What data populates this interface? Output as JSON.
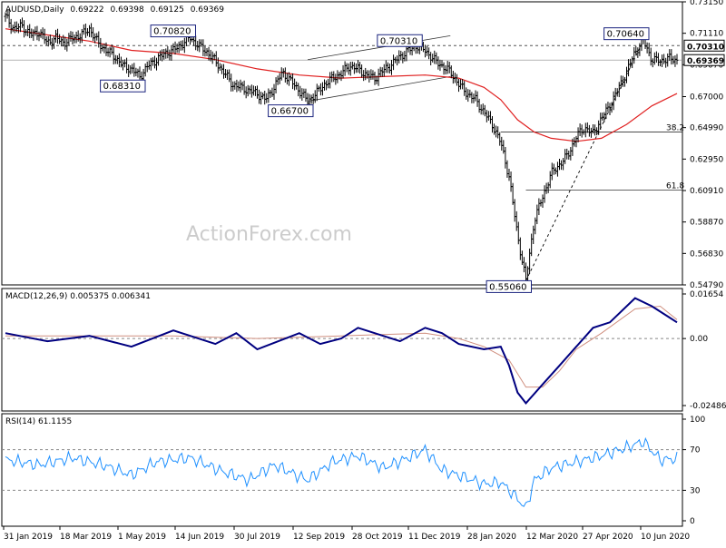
{
  "chart_data": [
    {
      "type": "candlestick",
      "title": "AUDUSD,Daily",
      "ohlc": {
        "open": "0.69222",
        "high": "0.69398",
        "low": "0.69125",
        "close": "0.69369"
      },
      "ylim": [
        0.5479,
        0.7315
      ],
      "y_ticks": [
        "0.73150",
        "0.71110",
        "0.69070",
        "0.67000",
        "0.64990",
        "0.62950",
        "0.60910",
        "0.58870",
        "0.56830",
        "0.54790"
      ],
      "x_ticks": [
        "31 Jan 2019",
        "18 Mar 2019",
        "1 May 2019",
        "14 Jun 2019",
        "30 Jul 2019",
        "12 Sep 2019",
        "28 Oct 2019",
        "11 Dec 2019",
        "28 Jan 2020",
        "12 Mar 2020",
        "27 Apr 2020",
        "10 Jun 2020"
      ],
      "price_path": [
        [
          0,
          0.722
        ],
        [
          2,
          0.714
        ],
        [
          4,
          0.716
        ],
        [
          6,
          0.71
        ],
        [
          8,
          0.712
        ],
        [
          10,
          0.705
        ],
        [
          12,
          0.708
        ],
        [
          14,
          0.705
        ],
        [
          16,
          0.708
        ],
        [
          18,
          0.71
        ],
        [
          20,
          0.714
        ],
        [
          22,
          0.705
        ],
        [
          24,
          0.7
        ],
        [
          26,
          0.696
        ],
        [
          28,
          0.69
        ],
        [
          30,
          0.688
        ],
        [
          32,
          0.6831
        ],
        [
          34,
          0.69
        ],
        [
          36,
          0.694
        ],
        [
          38,
          0.698
        ],
        [
          40,
          0.7
        ],
        [
          42,
          0.704
        ],
        [
          44,
          0.7082
        ],
        [
          46,
          0.703
        ],
        [
          48,
          0.699
        ],
        [
          50,
          0.693
        ],
        [
          52,
          0.686
        ],
        [
          54,
          0.678
        ],
        [
          56,
          0.676
        ],
        [
          58,
          0.674
        ],
        [
          60,
          0.672
        ],
        [
          62,
          0.668
        ],
        [
          64,
          0.676
        ],
        [
          66,
          0.686
        ],
        [
          68,
          0.68
        ],
        [
          70,
          0.674
        ],
        [
          72,
          0.667
        ],
        [
          74,
          0.672
        ],
        [
          76,
          0.678
        ],
        [
          78,
          0.682
        ],
        [
          80,
          0.685
        ],
        [
          82,
          0.69
        ],
        [
          84,
          0.688
        ],
        [
          86,
          0.684
        ],
        [
          88,
          0.682
        ],
        [
          90,
          0.687
        ],
        [
          92,
          0.691
        ],
        [
          94,
          0.696
        ],
        [
          96,
          0.7
        ],
        [
          98,
          0.7031
        ],
        [
          100,
          0.7
        ],
        [
          102,
          0.694
        ],
        [
          104,
          0.69
        ],
        [
          106,
          0.686
        ],
        [
          108,
          0.678
        ],
        [
          110,
          0.672
        ],
        [
          112,
          0.668
        ],
        [
          114,
          0.66
        ],
        [
          116,
          0.652
        ],
        [
          118,
          0.6402
        ],
        [
          120,
          0.618
        ],
        [
          122,
          0.58
        ],
        [
          124,
          0.5506
        ],
        [
          126,
          0.59
        ],
        [
          128,
          0.605
        ],
        [
          130,
          0.62
        ],
        [
          132,
          0.626
        ],
        [
          134,
          0.632
        ],
        [
          136,
          0.644
        ],
        [
          138,
          0.65
        ],
        [
          140,
          0.646
        ],
        [
          142,
          0.656
        ],
        [
          144,
          0.664
        ],
        [
          146,
          0.675
        ],
        [
          148,
          0.686
        ],
        [
          150,
          0.699
        ],
        [
          152,
          0.7064
        ],
        [
          154,
          0.694
        ],
        [
          156,
          0.6931
        ],
        [
          158,
          0.6948
        ],
        [
          160,
          0.6937
        ]
      ],
      "moving_average": [
        [
          0,
          0.714
        ],
        [
          10,
          0.71
        ],
        [
          20,
          0.706
        ],
        [
          30,
          0.7
        ],
        [
          40,
          0.698
        ],
        [
          50,
          0.694
        ],
        [
          60,
          0.688
        ],
        [
          70,
          0.684
        ],
        [
          80,
          0.682
        ],
        [
          90,
          0.683
        ],
        [
          100,
          0.684
        ],
        [
          108,
          0.682
        ],
        [
          114,
          0.676
        ],
        [
          118,
          0.668
        ],
        [
          122,
          0.655
        ],
        [
          126,
          0.647
        ],
        [
          130,
          0.643
        ],
        [
          136,
          0.641
        ],
        [
          142,
          0.643
        ],
        [
          148,
          0.652
        ],
        [
          154,
          0.664
        ],
        [
          160,
          0.672
        ]
      ],
      "level_labels": [
        "0.70820",
        "0.68310",
        "0.66700",
        "0.70310",
        "0.70640",
        "0.55060"
      ],
      "fib_labels": [
        "38.2",
        "61.8"
      ],
      "dashed_level": 0.7031,
      "fib_38_2": 0.6471,
      "fib_61_8": 0.6094,
      "right_labels": [
        "0.70310",
        "0.69369"
      ]
    },
    {
      "type": "line",
      "title": "MACD(12,26,9) 0.005375 0.006341",
      "ylim": [
        -0.02486,
        0.01654
      ],
      "y_ticks": [
        "0.01654",
        "0.00",
        "-0.02486"
      ],
      "series": [
        {
          "values": [
            [
              0,
              0.002
            ],
            [
              10,
              -0.001
            ],
            [
              20,
              0.001
            ],
            [
              30,
              -0.003
            ],
            [
              40,
              0.003
            ],
            [
              50,
              -0.002
            ],
            [
              55,
              0.002
            ],
            [
              60,
              -0.004
            ],
            [
              70,
              0.002
            ],
            [
              75,
              -0.002
            ],
            [
              80,
              0.0
            ],
            [
              84,
              0.004
            ],
            [
              90,
              0.001
            ],
            [
              94,
              -0.001
            ],
            [
              100,
              0.004
            ],
            [
              104,
              0.002
            ],
            [
              108,
              -0.002
            ],
            [
              114,
              -0.004
            ],
            [
              118,
              -0.003
            ],
            [
              120,
              -0.01
            ],
            [
              122,
              -0.02
            ],
            [
              124,
              -0.024
            ],
            [
              128,
              -0.017
            ],
            [
              132,
              -0.01
            ],
            [
              136,
              -0.003
            ],
            [
              140,
              0.004
            ],
            [
              144,
              0.006
            ],
            [
              150,
              0.015
            ],
            [
              154,
              0.012
            ],
            [
              158,
              0.008
            ],
            [
              160,
              0.006
            ]
          ]
        },
        {
          "values": [
            [
              0,
              0.001
            ],
            [
              20,
              0.001
            ],
            [
              40,
              0.001
            ],
            [
              60,
              0.0
            ],
            [
              80,
              0.001
            ],
            [
              100,
              0.002
            ],
            [
              108,
              0.0
            ],
            [
              114,
              -0.003
            ],
            [
              120,
              -0.008
            ],
            [
              124,
              -0.018
            ],
            [
              128,
              -0.018
            ],
            [
              132,
              -0.012
            ],
            [
              136,
              -0.004
            ],
            [
              142,
              0.002
            ],
            [
              150,
              0.011
            ],
            [
              156,
              0.012
            ],
            [
              160,
              0.007
            ]
          ]
        }
      ]
    },
    {
      "type": "line",
      "title": "RSI(14) 61.1155",
      "ylim": [
        0,
        100
      ],
      "y_ticks": [
        "100",
        "70",
        "30",
        "0"
      ],
      "series": [
        {
          "values": [
            [
              0,
              60
            ],
            [
              8,
              55
            ],
            [
              16,
              62
            ],
            [
              24,
              54
            ],
            [
              30,
              45
            ],
            [
              36,
              58
            ],
            [
              44,
              62
            ],
            [
              52,
              48
            ],
            [
              58,
              40
            ],
            [
              64,
              55
            ],
            [
              72,
              40
            ],
            [
              78,
              58
            ],
            [
              84,
              64
            ],
            [
              90,
              52
            ],
            [
              96,
              62
            ],
            [
              100,
              70
            ],
            [
              104,
              50
            ],
            [
              110,
              42
            ],
            [
              114,
              36
            ],
            [
              118,
              38
            ],
            [
              122,
              22
            ],
            [
              124,
              12
            ],
            [
              126,
              40
            ],
            [
              130,
              52
            ],
            [
              136,
              58
            ],
            [
              142,
              64
            ],
            [
              148,
              72
            ],
            [
              152,
              78
            ],
            [
              156,
              60
            ],
            [
              160,
              61
            ]
          ]
        }
      ]
    }
  ],
  "watermark": "ActionForex.com",
  "colors": {
    "price": "#000000",
    "moving_average": "#e02020",
    "macd_line": "#000080",
    "signal_line": "#d09080",
    "rsi_line": "#1e90ff",
    "level_label_border": "#1a237e",
    "bg": "#ffffff",
    "grid": "#c0c0c0"
  }
}
